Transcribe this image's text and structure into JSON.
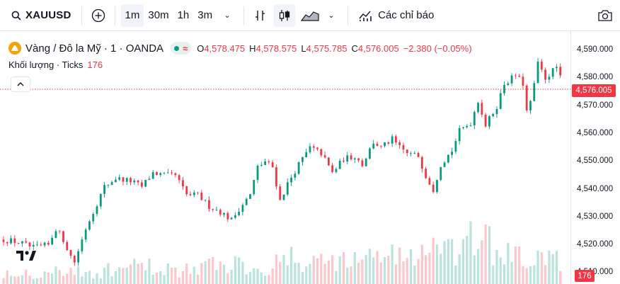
{
  "toolbar": {
    "symbol": "XAUUSD",
    "intervals": [
      "1m",
      "30m",
      "1h",
      "3m"
    ],
    "active_interval": "1m",
    "indicators_label": "Các chỉ báo"
  },
  "legend": {
    "title": "Vàng / Đô la Mỹ · 1 · OANDA",
    "open_label": "O",
    "open": "4,578.475",
    "high_label": "H",
    "high": "4,578.575",
    "low_label": "L",
    "low": "4,575.785",
    "close_label": "C",
    "close": "4,576.005",
    "change": "−2.380 (−0.05%)",
    "volume_label": "Khối lượng · Ticks",
    "volume_value": "176"
  },
  "price_axis": {
    "ticks": [
      "4,590.000",
      "4,580.000",
      "4,570.000",
      "4,560.000",
      "4,550.000",
      "4,540.000",
      "4,530.000",
      "4,520.000",
      "4,510.000"
    ],
    "last_price_tag": "4,576.005",
    "volume_tag": "176"
  },
  "colors": {
    "up": "#089981",
    "down": "#f23645",
    "last_price": "#f23645"
  },
  "chart_data": {
    "type": "candlestick",
    "y_range": [
      4509,
      4592
    ],
    "last_price": 4576.005,
    "close_path": [
      [
        0,
        4522
      ],
      [
        4,
        4521
      ],
      [
        8,
        4519
      ],
      [
        12,
        4520
      ],
      [
        14,
        4526
      ],
      [
        16,
        4522
      ],
      [
        18,
        4516
      ],
      [
        19,
        4514
      ],
      [
        22,
        4526
      ],
      [
        24,
        4532
      ],
      [
        27,
        4541
      ],
      [
        30,
        4544
      ],
      [
        34,
        4543
      ],
      [
        37,
        4541
      ],
      [
        40,
        4546
      ],
      [
        43,
        4545
      ],
      [
        46,
        4545
      ],
      [
        49,
        4538
      ],
      [
        52,
        4538
      ],
      [
        55,
        4534
      ],
      [
        58,
        4532
      ],
      [
        61,
        4529
      ],
      [
        63,
        4533
      ],
      [
        66,
        4538
      ],
      [
        68,
        4548
      ],
      [
        70,
        4550
      ],
      [
        72,
        4548
      ],
      [
        74,
        4536
      ],
      [
        76,
        4542
      ],
      [
        79,
        4549
      ],
      [
        82,
        4555
      ],
      [
        85,
        4553
      ],
      [
        88,
        4546
      ],
      [
        91,
        4551
      ],
      [
        94,
        4552
      ],
      [
        96,
        4549
      ],
      [
        99,
        4557
      ],
      [
        101,
        4555
      ],
      [
        104,
        4558
      ],
      [
        106,
        4555
      ],
      [
        108,
        4553
      ],
      [
        111,
        4552
      ],
      [
        113,
        4545
      ],
      [
        115,
        4540
      ],
      [
        117,
        4549
      ],
      [
        120,
        4554
      ],
      [
        122,
        4561
      ],
      [
        125,
        4564
      ],
      [
        127,
        4572
      ],
      [
        129,
        4563
      ],
      [
        132,
        4570
      ],
      [
        134,
        4578
      ],
      [
        137,
        4581
      ],
      [
        139,
        4578
      ],
      [
        140,
        4568
      ],
      [
        141,
        4571
      ],
      [
        143,
        4585
      ],
      [
        145,
        4580
      ],
      [
        148,
        4584
      ],
      [
        150,
        4576
      ]
    ],
    "volume_profile": [
      22,
      18,
      26,
      20,
      24,
      30,
      28,
      25,
      33,
      35,
      30,
      42,
      38,
      45,
      40,
      55,
      48,
      60,
      52,
      75,
      50,
      45,
      40
    ]
  }
}
